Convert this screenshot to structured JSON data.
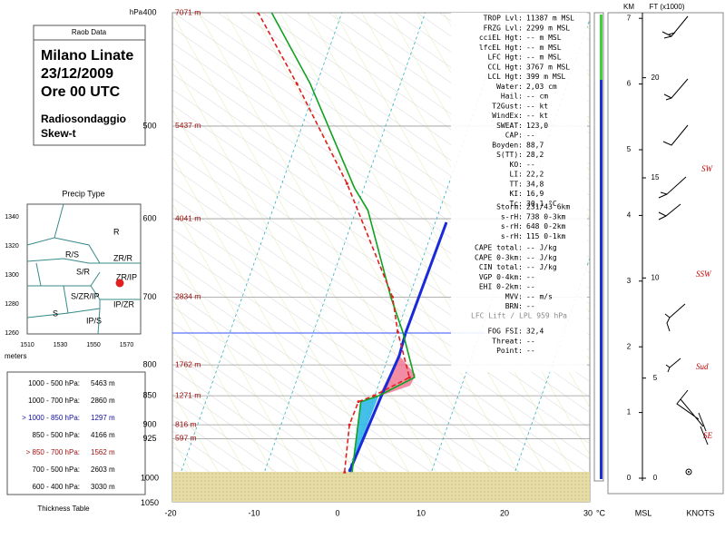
{
  "header": {
    "box_title": "Raob Data",
    "station": "Milano Linate",
    "date": "23/12/2009",
    "time": "Ore 00 UTC",
    "line1": "Radiosondaggio",
    "line2": "Skew-t"
  },
  "precip": {
    "title": "Precip Type",
    "y_labels": [
      "1340",
      "1320",
      "1300",
      "1280",
      "1260"
    ],
    "x_labels": [
      "1510",
      "1530",
      "1550",
      "1570"
    ],
    "unit": "meters",
    "regions": [
      "R",
      "R/S",
      "ZR/R",
      "S/R",
      "ZR/IP",
      "S/ZR/IP",
      "IP/ZR",
      "S",
      "IP/S"
    ]
  },
  "thickness": {
    "title": "Thickness Table",
    "rows": [
      [
        "1000 - 500 hPa:",
        "5463 m"
      ],
      [
        "1000 - 700 hPa:",
        "2860 m"
      ],
      [
        "> 1000 - 850 hPa:",
        "1297 m"
      ],
      [
        "850 - 500 hPa:",
        "4166 m"
      ],
      [
        "> 850 - 700 hPa:",
        "1562 m"
      ],
      [
        "700 - 500 hPa:",
        "2603 m"
      ],
      [
        "600 - 400 hPa:",
        "3030 m"
      ]
    ]
  },
  "skewt": {
    "pressure_unit": "hPa",
    "temp_unit": "°C",
    "pressure_ticks": [
      400,
      500,
      600,
      700,
      800,
      850,
      900,
      925,
      1000,
      1050
    ],
    "heights": [
      "7071 m",
      "5437 m",
      "4041 m",
      "2834 m",
      "1762 m",
      "1271 m",
      "816 m",
      "597 m"
    ],
    "temp_ticks": [
      -20,
      -10,
      0,
      10,
      20,
      30
    ],
    "temperature": {
      "pressure": [
        988,
        860,
        850,
        820,
        750,
        700,
        590,
        565,
        460,
        400
      ],
      "values": [
        0.5,
        -1.4,
        0.5,
        4.0,
        0.7,
        -2.2,
        -8.6,
        -11.1,
        -20.8,
        -28.4
      ]
    },
    "dewpoint": {
      "pressure": [
        988,
        900,
        860,
        850,
        820,
        750,
        700,
        560,
        460,
        400
      ],
      "values": [
        -0.4,
        -1.8,
        -1.7,
        -0.1,
        3.4,
        0.1,
        -2.0,
        -12.2,
        -22.4,
        -30.0
      ]
    }
  },
  "indices": [
    [
      "TROP Lvl:",
      "11387 m MSL"
    ],
    [
      "FRZG Lvl:",
      "2299 m MSL"
    ],
    [
      "cciEL Hgt:",
      "-- m MSL"
    ],
    [
      "lfcEL Hgt:",
      "-- m MSL"
    ],
    [
      "LFC Hgt:",
      "-- m MSL"
    ],
    [
      "CCL Hgt:",
      "3767 m MSL"
    ],
    [
      "LCL Hgt:",
      "399 m MSL"
    ],
    [
      "Water:",
      "2,03 cm"
    ],
    [
      "Hail:",
      "-- cm"
    ],
    [
      "T2Gust:",
      "-- kt"
    ],
    [
      "WindEx:",
      "-- kt"
    ],
    [
      "SWEAT:",
      "123,0"
    ],
    [
      "CAP:",
      "--"
    ],
    [
      "Boyden:",
      "88,7"
    ],
    [
      "S(TT):",
      "28,2"
    ],
    [
      "KO:",
      "--"
    ],
    [
      "LI:",
      "22,2"
    ],
    [
      "TT:",
      "34,8"
    ],
    [
      "KI:",
      "16,9"
    ],
    [
      "Tc:",
      "30,1 °C"
    ]
  ],
  "storm": [
    [
      "Storm:",
      "231/43  6km"
    ],
    [
      "s-rH:",
      "738  0-3km"
    ],
    [
      "s-rH:",
      "648  0-2km"
    ],
    [
      "s-rH:",
      "115  0-1km"
    ]
  ],
  "cape": [
    [
      "CAPE total:",
      "-- J/kg"
    ],
    [
      "CAPE 0-3km:",
      "-- J/kg"
    ],
    [
      "CIN total:",
      "-- J/kg"
    ],
    [
      "VGP 0-4km:",
      "--"
    ],
    [
      "EHI 0-2km:",
      "--"
    ],
    [
      "MVV:",
      "-- m/s"
    ],
    [
      "BRN:",
      "--"
    ]
  ],
  "lift_note": "LFC Lift / LPL 959 hPa",
  "fog": [
    [
      "FOG FSI:",
      "32,4"
    ],
    [
      "Threat:",
      "--"
    ],
    [
      "Point:",
      "--"
    ]
  ],
  "heights_panel": {
    "km_title": "KM",
    "ft_title": "FT (x1000)",
    "km_ticks": [
      0,
      1,
      2,
      3,
      4,
      5,
      6,
      7
    ],
    "ft_ticks": [
      0,
      5,
      10,
      15,
      20
    ],
    "footer_c": "°C",
    "footer_msl": "MSL",
    "footer_knots": "KNOTS",
    "wind_labels": [
      "SW",
      "SSW",
      "Sud",
      "SE"
    ]
  }
}
